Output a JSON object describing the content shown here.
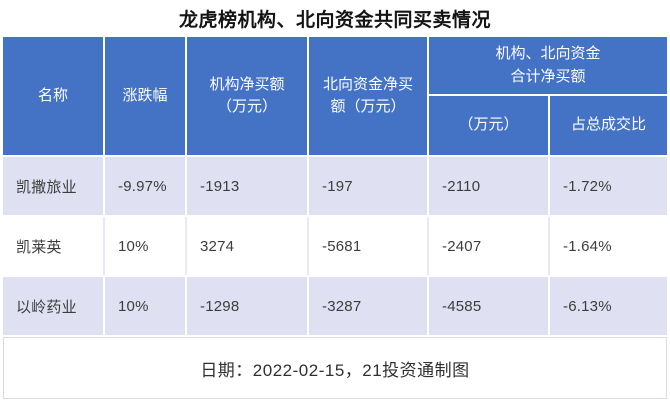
{
  "title": "龙虎榜机构、北向资金共同买卖情况",
  "colors": {
    "header_bg": "#4473c5",
    "band_row_bg": "#dfe1f2",
    "plain_row_bg": "#ffffff",
    "header_text": "#ffffff",
    "body_text": "#3d3d3d"
  },
  "table": {
    "headers": {
      "name": "名称",
      "change": "涨跌幅",
      "inst_net_buy": "机构净买额\n（万元）",
      "north_net_buy": "北向资金净买\n额（万元）",
      "combined_group": "机构、北向资金\n合计净买额",
      "combined_amount": "（万元）",
      "combined_ratio": "占总成交比"
    },
    "rows": [
      {
        "name": "凯撒旅业",
        "change": "-9.97%",
        "inst": "-1913",
        "north": "-197",
        "total": "-2110",
        "ratio": "-1.72%"
      },
      {
        "name": "凯莱英",
        "change": "10%",
        "inst": "3274",
        "north": "-5681",
        "total": "-2407",
        "ratio": "-1.64%"
      },
      {
        "name": "以岭药业",
        "change": "10%",
        "inst": "-1298",
        "north": "-3287",
        "total": "-4585",
        "ratio": "-6.13%"
      }
    ]
  },
  "footer": {
    "note": "日期：2022-02-15，21投资通制图"
  },
  "chart_data": {
    "type": "table",
    "title": "龙虎榜机构、北向资金共同买卖情况",
    "columns": [
      "名称",
      "涨跌幅",
      "机构净买额（万元）",
      "北向资金净买额（万元）",
      "机构、北向资金合计净买额（万元）",
      "机构、北向资金合计净买额占总成交比"
    ],
    "rows": [
      [
        "凯撒旅业",
        "-9.97%",
        -1913,
        -197,
        -2110,
        "-1.72%"
      ],
      [
        "凯莱英",
        "10%",
        3274,
        -5681,
        -2407,
        "-1.64%"
      ],
      [
        "以岭药业",
        "10%",
        -1298,
        -3287,
        -4585,
        "-6.13%"
      ]
    ],
    "note": "日期：2022-02-15，21投资通制图",
    "layout": "banded rows (lavender/white), blue header with merged group column"
  }
}
